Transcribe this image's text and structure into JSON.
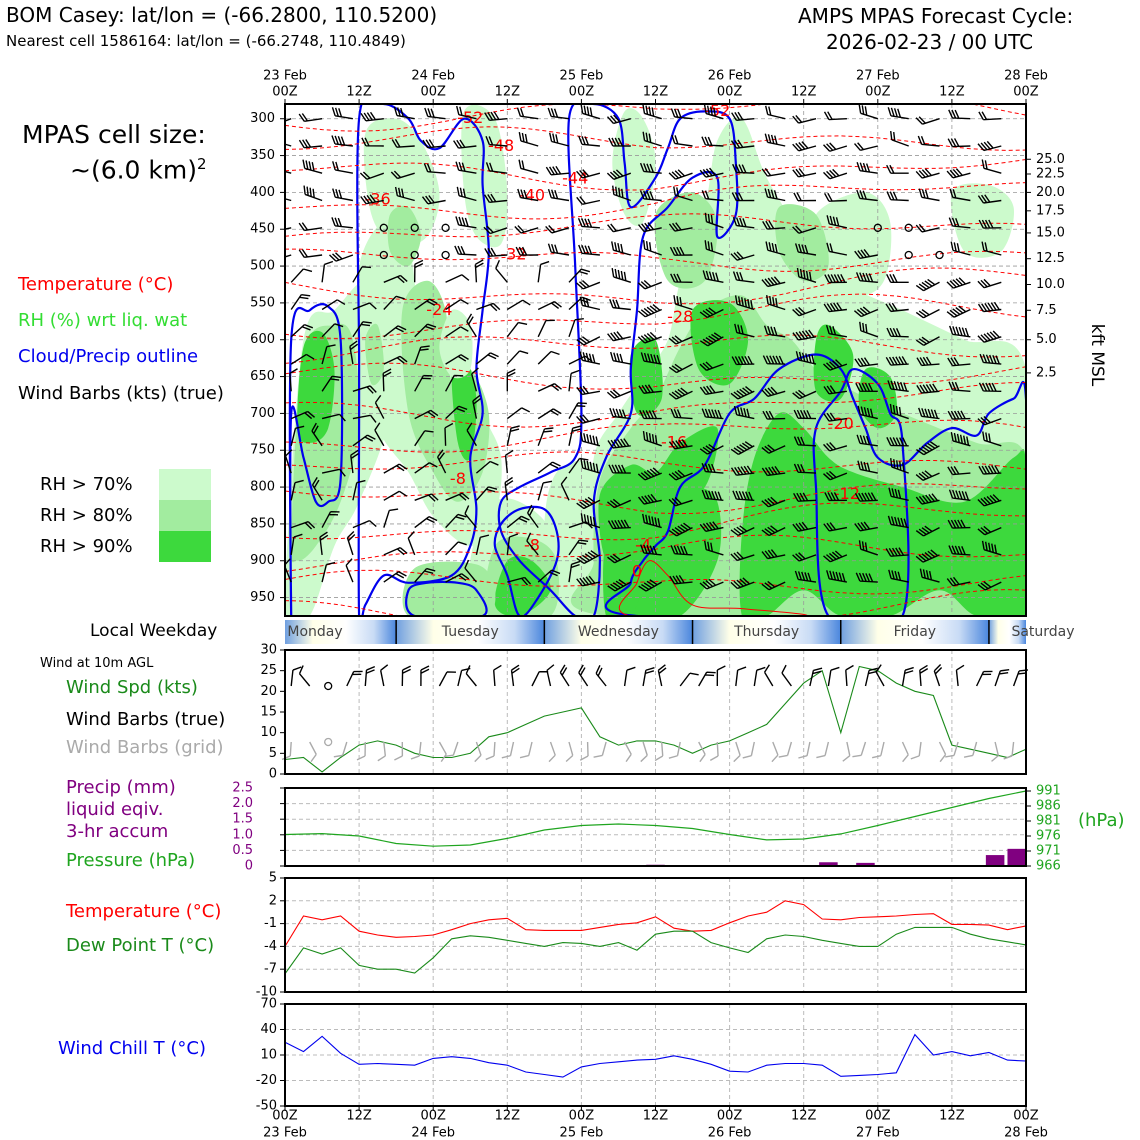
{
  "header": {
    "station": "BOM Casey: lat/lon = (-66.2800, 110.5200)",
    "nearest": "Nearest cell 1586164: lat/lon = (-66.2748, 110.4849)",
    "title1": "AMPS MPAS Forecast Cycle:",
    "title2": "2026-02-23 / 00 UTC"
  },
  "cellsize": {
    "line1": "MPAS cell size:",
    "line2": "~(6.0 km)",
    "sup": "2"
  },
  "legend": {
    "temperature": "Temperature (°C)",
    "rh": "RH (%) wrt liq. wat",
    "cloud": "Cloud/Precip outline",
    "wind": "Wind Barbs (kts) (true)",
    "rh70": "RH > 70%",
    "rh80": "RH > 80%",
    "rh90": "RH > 90%"
  },
  "colors": {
    "temp": "#ff0000",
    "rh": "#33dd33",
    "cloud": "#0000ee",
    "pressure": "#1fa51f",
    "precip": "#800080",
    "dew": "#1a8a1a",
    "chill": "#0000ee",
    "gray": "#aaaaaa",
    "rh70": "#ccfacc",
    "rh80": "#a2ec9f",
    "rh90": "#3dd93d"
  },
  "time_axis": {
    "top_dates": [
      "23 Feb\n00Z",
      "",
      "24 Feb\n00Z",
      "",
      "25 Feb\n00Z",
      "",
      "26 Feb\n00Z",
      "",
      "27 Feb\n00Z",
      "",
      "28 Feb\n00Z"
    ],
    "top_labels": [
      "00Z",
      "12Z",
      "00Z",
      "12Z",
      "00Z",
      "12Z",
      "00Z",
      "12Z",
      "00Z",
      "12Z",
      "00Z"
    ],
    "date_labels": [
      "23 Feb",
      "24 Feb",
      "25 Feb",
      "26 Feb",
      "27 Feb",
      "28 Feb"
    ],
    "hours": [
      0,
      12,
      24,
      36,
      48,
      60,
      72,
      84,
      96,
      108,
      120
    ]
  },
  "weekday": {
    "title": "Local Weekday",
    "days": [
      "Monday",
      "Tuesday",
      "Wednesday",
      "Thursday",
      "Friday",
      "Saturday"
    ]
  },
  "chart_data": [
    {
      "type": "heatmap",
      "name": "time-height cross section",
      "y_axis_pressure_hpa": [
        300,
        350,
        400,
        450,
        500,
        550,
        600,
        650,
        700,
        750,
        800,
        850,
        900,
        950
      ],
      "ylim": [
        975,
        280
      ],
      "right_axis_label": "kft MSL",
      "right_axis_ticks": [
        {
          "kft": "25.0",
          "p": 355
        },
        {
          "kft": "22.5",
          "p": 375
        },
        {
          "kft": "20.0",
          "p": 400
        },
        {
          "kft": "17.5",
          "p": 425
        },
        {
          "kft": "15.0",
          "p": 455
        },
        {
          "kft": "12.5",
          "p": 490
        },
        {
          "kft": "10.0",
          "p": 525
        },
        {
          "kft": "7.5",
          "p": 560
        },
        {
          "kft": "5.0",
          "p": 600
        },
        {
          "kft": "2.5",
          "p": 645
        }
      ],
      "temp_contour_labels": [
        {
          "t": "-52",
          "h": 30,
          "p": 300
        },
        {
          "t": "-48",
          "h": 35,
          "p": 338
        },
        {
          "t": "-44",
          "h": 47,
          "p": 382
        },
        {
          "t": "-40",
          "h": 40,
          "p": 405
        },
        {
          "t": "-36",
          "h": 15,
          "p": 410
        },
        {
          "t": "-32",
          "h": 37,
          "p": 485
        },
        {
          "t": "-24",
          "h": 25,
          "p": 560
        },
        {
          "t": "-8",
          "h": 28,
          "p": 790
        },
        {
          "t": "-8",
          "h": 40,
          "p": 880
        },
        {
          "t": "-4",
          "h": 58,
          "p": 880
        },
        {
          "t": "0",
          "h": 57,
          "p": 915
        },
        {
          "t": "-28",
          "h": 64,
          "p": 570
        },
        {
          "t": "-16",
          "h": 63,
          "p": 740
        },
        {
          "t": "-20",
          "h": 90,
          "p": 715
        },
        {
          "t": "-12",
          "h": 91,
          "p": 810
        },
        {
          "t": "-52",
          "h": 70,
          "p": 290
        }
      ]
    },
    {
      "type": "line",
      "name": "wind speed",
      "ylabel": "Wind Spd (kts)",
      "ylim": [
        0,
        30
      ],
      "yticks": [
        0,
        5,
        10,
        15,
        20,
        25,
        30
      ],
      "x": [
        0,
        3,
        6,
        9,
        12,
        15,
        18,
        21,
        24,
        27,
        30,
        33,
        36,
        39,
        42,
        45,
        48,
        51,
        54,
        57,
        60,
        63,
        66,
        69,
        72,
        75,
        78,
        81,
        84,
        87,
        90,
        93,
        96,
        99,
        102,
        105,
        108,
        111,
        114,
        117,
        120
      ],
      "values": [
        3.5,
        4,
        0.5,
        4,
        7,
        8,
        7,
        5,
        4,
        4,
        5,
        9,
        10,
        12,
        14,
        15,
        16,
        9,
        7,
        8,
        8,
        7,
        5,
        7,
        8,
        10,
        12,
        17,
        22,
        25,
        10,
        26,
        25,
        22,
        20,
        19,
        7,
        6,
        5,
        4,
        6
      ]
    },
    {
      "type": "line",
      "name": "sea level pressure",
      "ylabel": "Pressure (hPa)",
      "yticks_right": [
        966,
        971,
        976,
        981,
        986,
        991
      ],
      "ylim": [
        966,
        992
      ],
      "x": [
        0,
        6,
        12,
        18,
        24,
        30,
        36,
        42,
        48,
        54,
        60,
        66,
        72,
        78,
        84,
        90,
        96,
        102,
        108,
        114,
        120
      ],
      "values": [
        976.5,
        976.8,
        976,
        973.5,
        972.6,
        973,
        975.2,
        978,
        979.5,
        980,
        979.5,
        978.5,
        976.5,
        974.7,
        975,
        976.7,
        979.5,
        982.5,
        985.5,
        988.5,
        991
      ]
    },
    {
      "type": "bar",
      "name": "precip 3hr accum",
      "ylabel": "Precip (mm) liquid eqiv. 3-hr accum",
      "ylim": [
        0,
        2.5
      ],
      "yticks": [
        0,
        0.5,
        1.0,
        1.5,
        2.0,
        2.5
      ],
      "x": [
        60,
        88,
        94,
        115,
        118.5
      ],
      "values": [
        0.04,
        0.12,
        0.1,
        0.35,
        0.55
      ]
    },
    {
      "type": "line",
      "name": "surface temperature and dew point",
      "ylim": [
        -10,
        5
      ],
      "yticks": [
        -10,
        -7,
        -4,
        -1,
        2,
        5
      ],
      "x": [
        0,
        3,
        6,
        9,
        12,
        15,
        18,
        21,
        24,
        27,
        30,
        33,
        36,
        39,
        42,
        45,
        48,
        51,
        54,
        57,
        60,
        63,
        66,
        69,
        72,
        75,
        78,
        81,
        84,
        87,
        90,
        93,
        96,
        99,
        102,
        105,
        108,
        111,
        114,
        117,
        120
      ],
      "series": [
        {
          "name": "Temperature (°C)",
          "values": [
            -4,
            0,
            -0.5,
            0,
            -2,
            -2.5,
            -2.8,
            -2.7,
            -2.5,
            -1.8,
            -1,
            -0.5,
            -0.3,
            -1.8,
            -1.9,
            -1.9,
            -1.9,
            -1.5,
            -1.1,
            -0.9,
            -0.1,
            -1.6,
            -2,
            -1.9,
            -0.9,
            0,
            0.5,
            2,
            1.5,
            -0.4,
            -0.5,
            -0.2,
            -0.1,
            0,
            0.2,
            0.3,
            -1.1,
            -1.1,
            -1.2,
            -1.8,
            -1.3
          ]
        },
        {
          "name": "Dew Point T (°C)",
          "values": [
            -7.6,
            -4.2,
            -5,
            -4.2,
            -6.5,
            -7,
            -7,
            -7.5,
            -5.5,
            -3,
            -2.6,
            -2.8,
            -3.2,
            -3.6,
            -4,
            -3.5,
            -3.6,
            -4,
            -3.5,
            -4.5,
            -2.4,
            -2,
            -2,
            -3.5,
            -4.2,
            -4.8,
            -3,
            -2.5,
            -2.7,
            -3.2,
            -3.6,
            -4,
            -4,
            -2.4,
            -1.5,
            -1.5,
            -1.5,
            -2.4,
            -3,
            -3.4,
            -3.8
          ]
        }
      ]
    },
    {
      "type": "line",
      "name": "wind chill",
      "ylabel": "Wind Chill T (°C)",
      "ylim": [
        -50,
        70
      ],
      "yticks": [
        -50,
        -20,
        10,
        40,
        70
      ],
      "x": [
        0,
        3,
        6,
        9,
        12,
        15,
        18,
        21,
        24,
        27,
        30,
        33,
        36,
        39,
        42,
        45,
        48,
        51,
        54,
        57,
        60,
        63,
        66,
        69,
        72,
        75,
        78,
        81,
        84,
        87,
        90,
        93,
        96,
        99,
        102,
        105,
        108,
        111,
        114,
        117,
        120
      ],
      "values": [
        25,
        14,
        32,
        12,
        -1,
        0,
        -1,
        -2,
        6,
        8,
        6,
        1,
        -2,
        -10,
        -13,
        -16,
        -4,
        0,
        2,
        4,
        5,
        9,
        5,
        -1,
        -9,
        -10,
        -2,
        0,
        0,
        -2,
        -15,
        -14,
        -13,
        -11,
        34,
        10,
        14,
        9,
        13,
        4,
        3
      ]
    }
  ],
  "labels": {
    "wind10m": "Wind at 10m AGL",
    "windspd": "Wind Spd (kts)",
    "windbarbs": "Wind Barbs (true)",
    "windgrid": "Wind Barbs (grid)",
    "precip1": "Precip (mm)",
    "precip2": "liquid eqiv.",
    "precip3": "3-hr accum",
    "pressure": "Pressure (hPa)",
    "hpa": "(hPa)",
    "sfctemp": "Temperature (°C)",
    "dewpoint": "Dew Point T (°C)",
    "windchill": "Wind Chill T (°C)"
  }
}
